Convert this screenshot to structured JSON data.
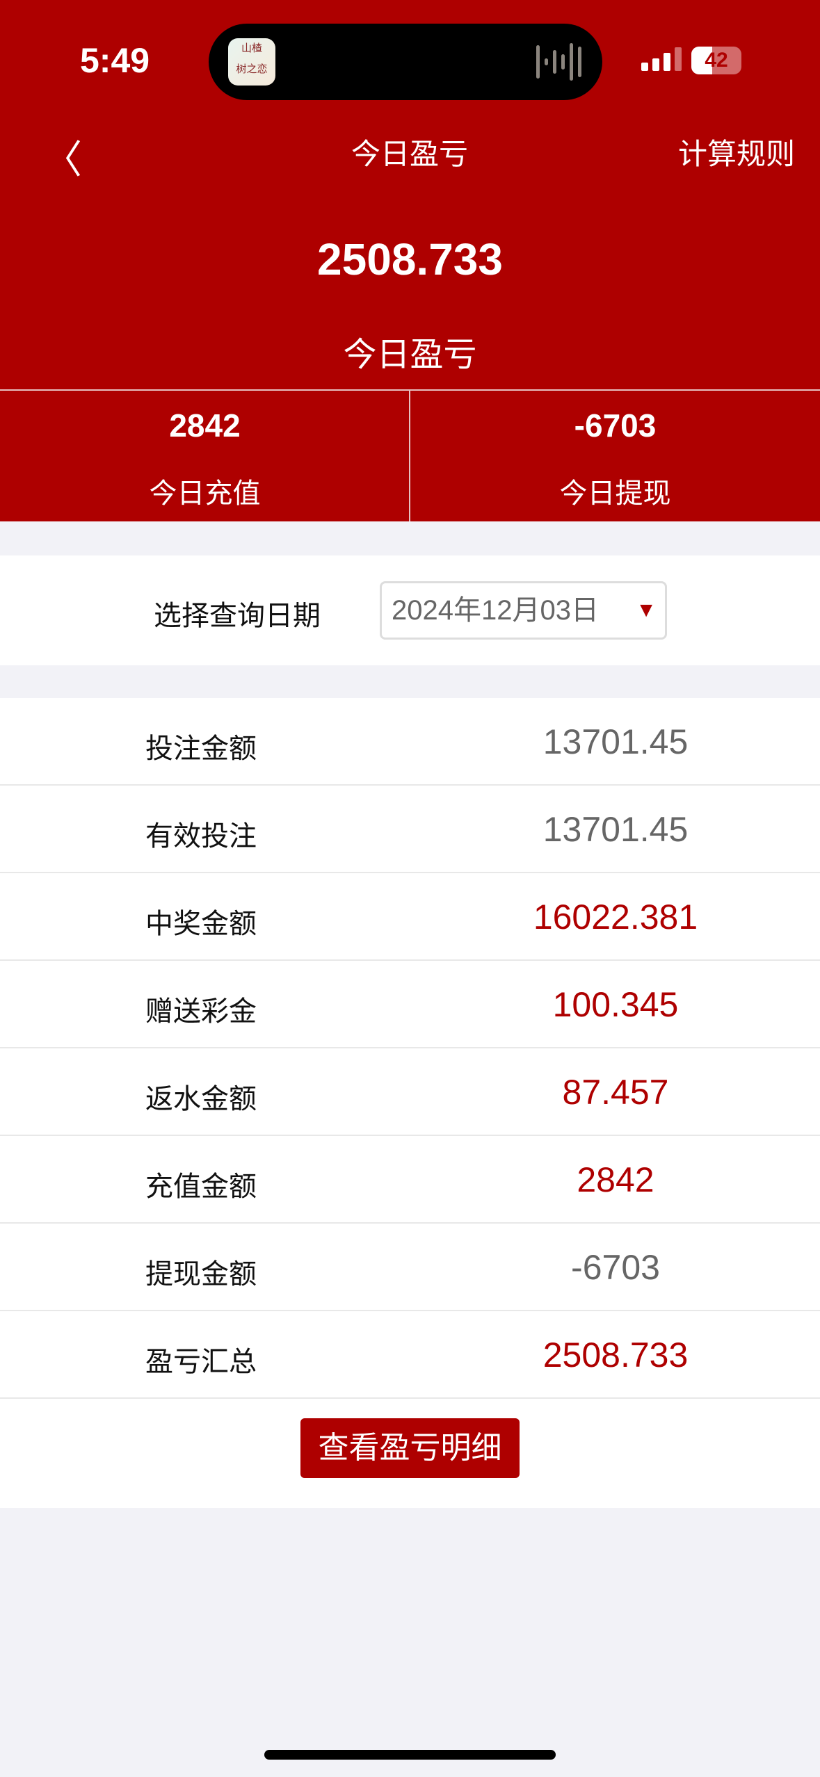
{
  "status_bar": {
    "time": "5:49",
    "battery": "42"
  },
  "nav": {
    "title": "今日盈亏",
    "right_link": "计算规则"
  },
  "summary": {
    "value": "2508.733",
    "label": "今日盈亏"
  },
  "stats": [
    {
      "value": "2842",
      "label": "今日充值"
    },
    {
      "value": "-6703",
      "label": "今日提现"
    }
  ],
  "date_filter": {
    "label": "选择查询日期",
    "value": "2024年12月03日"
  },
  "rows": [
    {
      "label": "投注金额",
      "value": "13701.45",
      "color": "#666666"
    },
    {
      "label": "有效投注",
      "value": "13701.45",
      "color": "#666666"
    },
    {
      "label": "中奖金额",
      "value": "16022.381",
      "color": "#ae0000"
    },
    {
      "label": "赠送彩金",
      "value": "100.345",
      "color": "#ae0000"
    },
    {
      "label": "返水金额",
      "value": "87.457",
      "color": "#ae0000"
    },
    {
      "label": "充值金额",
      "value": "2842",
      "color": "#ae0000"
    },
    {
      "label": "提现金额",
      "value": "-6703",
      "color": "#666666"
    },
    {
      "label": "盈亏汇总",
      "value": "2508.733",
      "color": "#ae0000"
    }
  ],
  "detail_button": "查看盈亏明细",
  "colors": {
    "brand": "#ae0000",
    "background": "#f2f2f7"
  }
}
